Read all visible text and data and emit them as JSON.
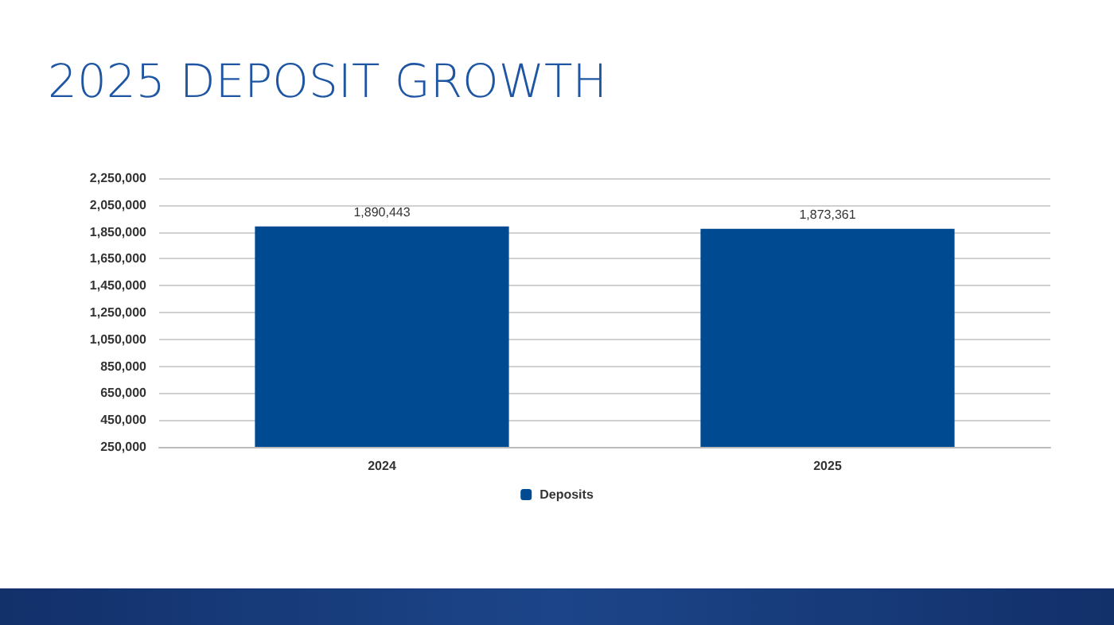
{
  "chart_data": {
    "type": "bar",
    "title": "2025 DEPOSIT GROWTH",
    "categories": [
      "2024",
      "2025"
    ],
    "series": [
      {
        "name": "Deposits",
        "color": "#004a91",
        "values": [
          1890443,
          1873361
        ],
        "value_labels": [
          "1,890,443",
          "1,873,361"
        ]
      }
    ],
    "ylim": [
      250000,
      2250000
    ],
    "yticks": [
      {
        "value": 250000,
        "label": "250,000"
      },
      {
        "value": 450000,
        "label": "450,000"
      },
      {
        "value": 650000,
        "label": "650,000"
      },
      {
        "value": 850000,
        "label": "850,000"
      },
      {
        "value": 1050000,
        "label": "1,050,000"
      },
      {
        "value": 1250000,
        "label": "1,250,000"
      },
      {
        "value": 1450000,
        "label": "1,450,000"
      },
      {
        "value": 1650000,
        "label": "1,650,000"
      },
      {
        "value": 1850000,
        "label": "1,850,000"
      },
      {
        "value": 2050000,
        "label": "2,050,000"
      },
      {
        "value": 2250000,
        "label": "2,250,000"
      }
    ],
    "grid": "y",
    "legend": "bottom"
  }
}
